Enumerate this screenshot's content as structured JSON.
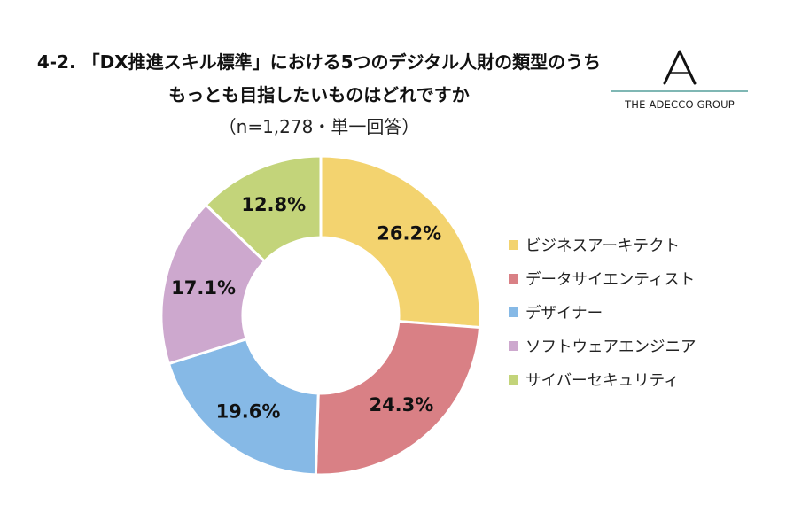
{
  "header": {
    "title_line1": "4-2. 「DX推進スキル標準」における5つのデジタル人財の類型のうち",
    "title_line2": "もっとも目指したいものはどれですか",
    "subtitle": "（n=1,278・単一回答）"
  },
  "logo": {
    "text": "THE ADECCO GROUP",
    "mark": "A"
  },
  "chart_data": {
    "type": "pie",
    "donut": true,
    "title": "4-2. 「DX推進スキル標準」における5つのデジタル人財の類型のうち もっとも目指したいものはどれですか",
    "subtitle": "（n=1,278・単一回答）",
    "unit": "%",
    "legend_position": "right",
    "slices": [
      {
        "name": "ビジネスアーキテクト",
        "value": 26.2,
        "label": "26.2%",
        "color": "#f3d36f"
      },
      {
        "name": "データサイエンティスト",
        "value": 24.3,
        "label": "24.3%",
        "color": "#d98085"
      },
      {
        "name": "デザイナー",
        "value": 19.6,
        "label": "19.6%",
        "color": "#86b9e6"
      },
      {
        "name": "ソフトウェアエンジニア",
        "value": 17.1,
        "label": "17.1%",
        "color": "#cda8ce"
      },
      {
        "name": "サイバーセキュリティ",
        "value": 12.8,
        "label": "12.8%",
        "color": "#c3d47a"
      }
    ]
  }
}
